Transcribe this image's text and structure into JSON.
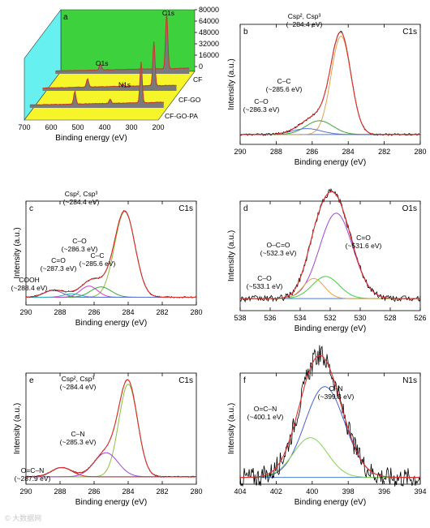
{
  "watermark": "© 大数据网",
  "chart_data": [
    {
      "panel": "a",
      "type": "line",
      "style": "3d-waterfall",
      "xlabel": "Binding energy (eV)",
      "xlim": [
        700,
        200
      ],
      "xticks": [
        700,
        600,
        500,
        400,
        300,
        200
      ],
      "zticks": [
        0,
        16000,
        32000,
        48000,
        64000,
        80000
      ],
      "series": [
        {
          "name": "CF",
          "peaks": [
            {
              "x": 284.4,
              "label": "C1s",
              "h": 80000
            },
            {
              "x": 532,
              "label": "O1s",
              "h": 9000
            }
          ]
        },
        {
          "name": "CF-GO",
          "peaks": [
            {
              "x": 284.4,
              "label": "",
              "h": 62000
            },
            {
              "x": 532,
              "label": "",
              "h": 12000
            },
            {
              "x": 400,
              "label": "N1s",
              "h": 3000
            }
          ]
        },
        {
          "name": "CF-GO-PA",
          "peaks": [
            {
              "x": 284.4,
              "label": "",
              "h": 58000
            },
            {
              "x": 532,
              "label": "",
              "h": 18000
            },
            {
              "x": 400,
              "label": "",
              "h": 6000
            }
          ]
        }
      ],
      "colors": {
        "back": "#3ed13e",
        "side": "#66f0f0",
        "floor": "#f5f52a",
        "wall": "#7a7a7a",
        "line": "#c0392b"
      }
    },
    {
      "panel": "b",
      "region": "C1s",
      "type": "line",
      "xlabel": "Binding energy (eV)",
      "ylabel": "Intensity (a.u.)",
      "xlim": [
        290,
        280
      ],
      "xticks": [
        290,
        288,
        286,
        284,
        282,
        280
      ],
      "peaks": [
        {
          "center": 284.4,
          "height": 1.0,
          "sigma": 0.55,
          "color": "#e1a24a"
        },
        {
          "center": 285.6,
          "height": 0.14,
          "sigma": 0.75,
          "color": "#3aa63a"
        },
        {
          "center": 286.3,
          "height": 0.06,
          "sigma": 0.8,
          "color": "#5b6fd6"
        }
      ],
      "background": 0.04,
      "noise": 0.01,
      "annotations": [
        {
          "text": "Csp², Csp³",
          "text2": "(~284.4 eV)",
          "x": 284.4
        },
        {
          "text": "C–C",
          "text2": "(~285.6 eV)",
          "x": 285.6
        },
        {
          "text": "C–O",
          "text2": "(~286.3 eV)",
          "x": 286.3
        }
      ]
    },
    {
      "panel": "c",
      "region": "C1s",
      "type": "line",
      "xlabel": "Binding energy (eV)",
      "ylabel": "Intensity (a.u.)",
      "xlim": [
        290,
        280
      ],
      "xticks": [
        290,
        288,
        286,
        284,
        282,
        280
      ],
      "peaks": [
        {
          "center": 284.2,
          "height": 1.0,
          "sigma": 0.6,
          "color": "#8fbf3a"
        },
        {
          "center": 285.6,
          "height": 0.12,
          "sigma": 0.6,
          "color": "#3aa63a"
        },
        {
          "center": 286.3,
          "height": 0.13,
          "sigma": 0.5,
          "color": "#d23ad2"
        },
        {
          "center": 287.3,
          "height": 0.04,
          "sigma": 0.5,
          "color": "#2ab3b3"
        },
        {
          "center": 288.4,
          "height": 0.08,
          "sigma": 0.55,
          "color": "#5b6fd6"
        }
      ],
      "background": 0.03,
      "noise": 0.008,
      "annotations": [
        {
          "text": "Csp², Csp³",
          "text2": "(~284.4 eV)",
          "x": 284.4
        },
        {
          "text": "C–O",
          "text2": "(~286.3 eV)",
          "x": 286.3
        },
        {
          "text": "C=O",
          "text2": "(~287.3 eV)",
          "x": 287.3
        },
        {
          "text": "COOH",
          "text2": "(~288.4 eV)",
          "x": 288.4
        },
        {
          "text": "C–C",
          "text2": "(~285.6 eV)",
          "x": 285.6
        }
      ]
    },
    {
      "panel": "d",
      "region": "O1s",
      "type": "line",
      "xlabel": "Binding energy (eV)",
      "ylabel": "Intensity (a.u.)",
      "xlim": [
        538,
        526
      ],
      "xticks": [
        538,
        536,
        534,
        532,
        530,
        528,
        526
      ],
      "peaks": [
        {
          "center": 531.6,
          "height": 0.85,
          "sigma": 1.1,
          "color": "#a244d6"
        },
        {
          "center": 532.3,
          "height": 0.22,
          "sigma": 0.9,
          "color": "#3ad23a"
        },
        {
          "center": 533.1,
          "height": 0.2,
          "sigma": 0.7,
          "color": "#e1a24a"
        }
      ],
      "background": 0.06,
      "noise": 0.03,
      "annotations": [
        {
          "text": "C=O",
          "text2": "(~531.6 eV)",
          "x": 531.6
        },
        {
          "text": "O–C=O",
          "text2": "(~532.3 eV)",
          "x": 532.3
        },
        {
          "text": "C–O",
          "text2": "(~533.1 eV)",
          "x": 533.1
        }
      ]
    },
    {
      "panel": "e",
      "region": "C1s",
      "type": "line",
      "xlabel": "Binding energy (eV)",
      "ylabel": "Intensity (a.u.)",
      "xlim": [
        290,
        280
      ],
      "xticks": [
        290,
        288,
        286,
        284,
        282,
        280
      ],
      "peaks": [
        {
          "center": 284.0,
          "height": 1.0,
          "sigma": 0.55,
          "color": "#8fbf3a"
        },
        {
          "center": 285.3,
          "height": 0.26,
          "sigma": 0.7,
          "color": "#a244d6"
        },
        {
          "center": 287.9,
          "height": 0.1,
          "sigma": 0.6,
          "color": "#c0392b"
        }
      ],
      "background": 0.02,
      "noise": 0.006,
      "annotations": [
        {
          "text": "Csp², Csp³",
          "text2": "(~284.4 eV)",
          "x": 284.4
        },
        {
          "text": "C–N",
          "text2": "(~285.3 eV)",
          "x": 285.3
        },
        {
          "text": "O=C–N",
          "text2": "(~287.9 eV)",
          "x": 287.9
        }
      ]
    },
    {
      "panel": "f",
      "region": "N1s",
      "type": "line",
      "xlabel": "Binding energy (eV)",
      "ylabel": "Intensity (a.u.)",
      "xlim": [
        404,
        394
      ],
      "xticks": [
        404,
        402,
        400,
        398,
        396,
        394
      ],
      "peaks": [
        {
          "center": 399.3,
          "height": 0.8,
          "sigma": 1.1,
          "color": "#4a5fd6"
        },
        {
          "center": 400.1,
          "height": 0.35,
          "sigma": 0.95,
          "color": "#7fd64a"
        }
      ],
      "background": 0.0,
      "noise": 0.09,
      "annotations": [
        {
          "text": "C–N",
          "text2": "(~399.3 eV)",
          "x": 399.3
        },
        {
          "text": "O=C–N",
          "text2": "(~400.1 eV)",
          "x": 400.1
        }
      ]
    }
  ]
}
